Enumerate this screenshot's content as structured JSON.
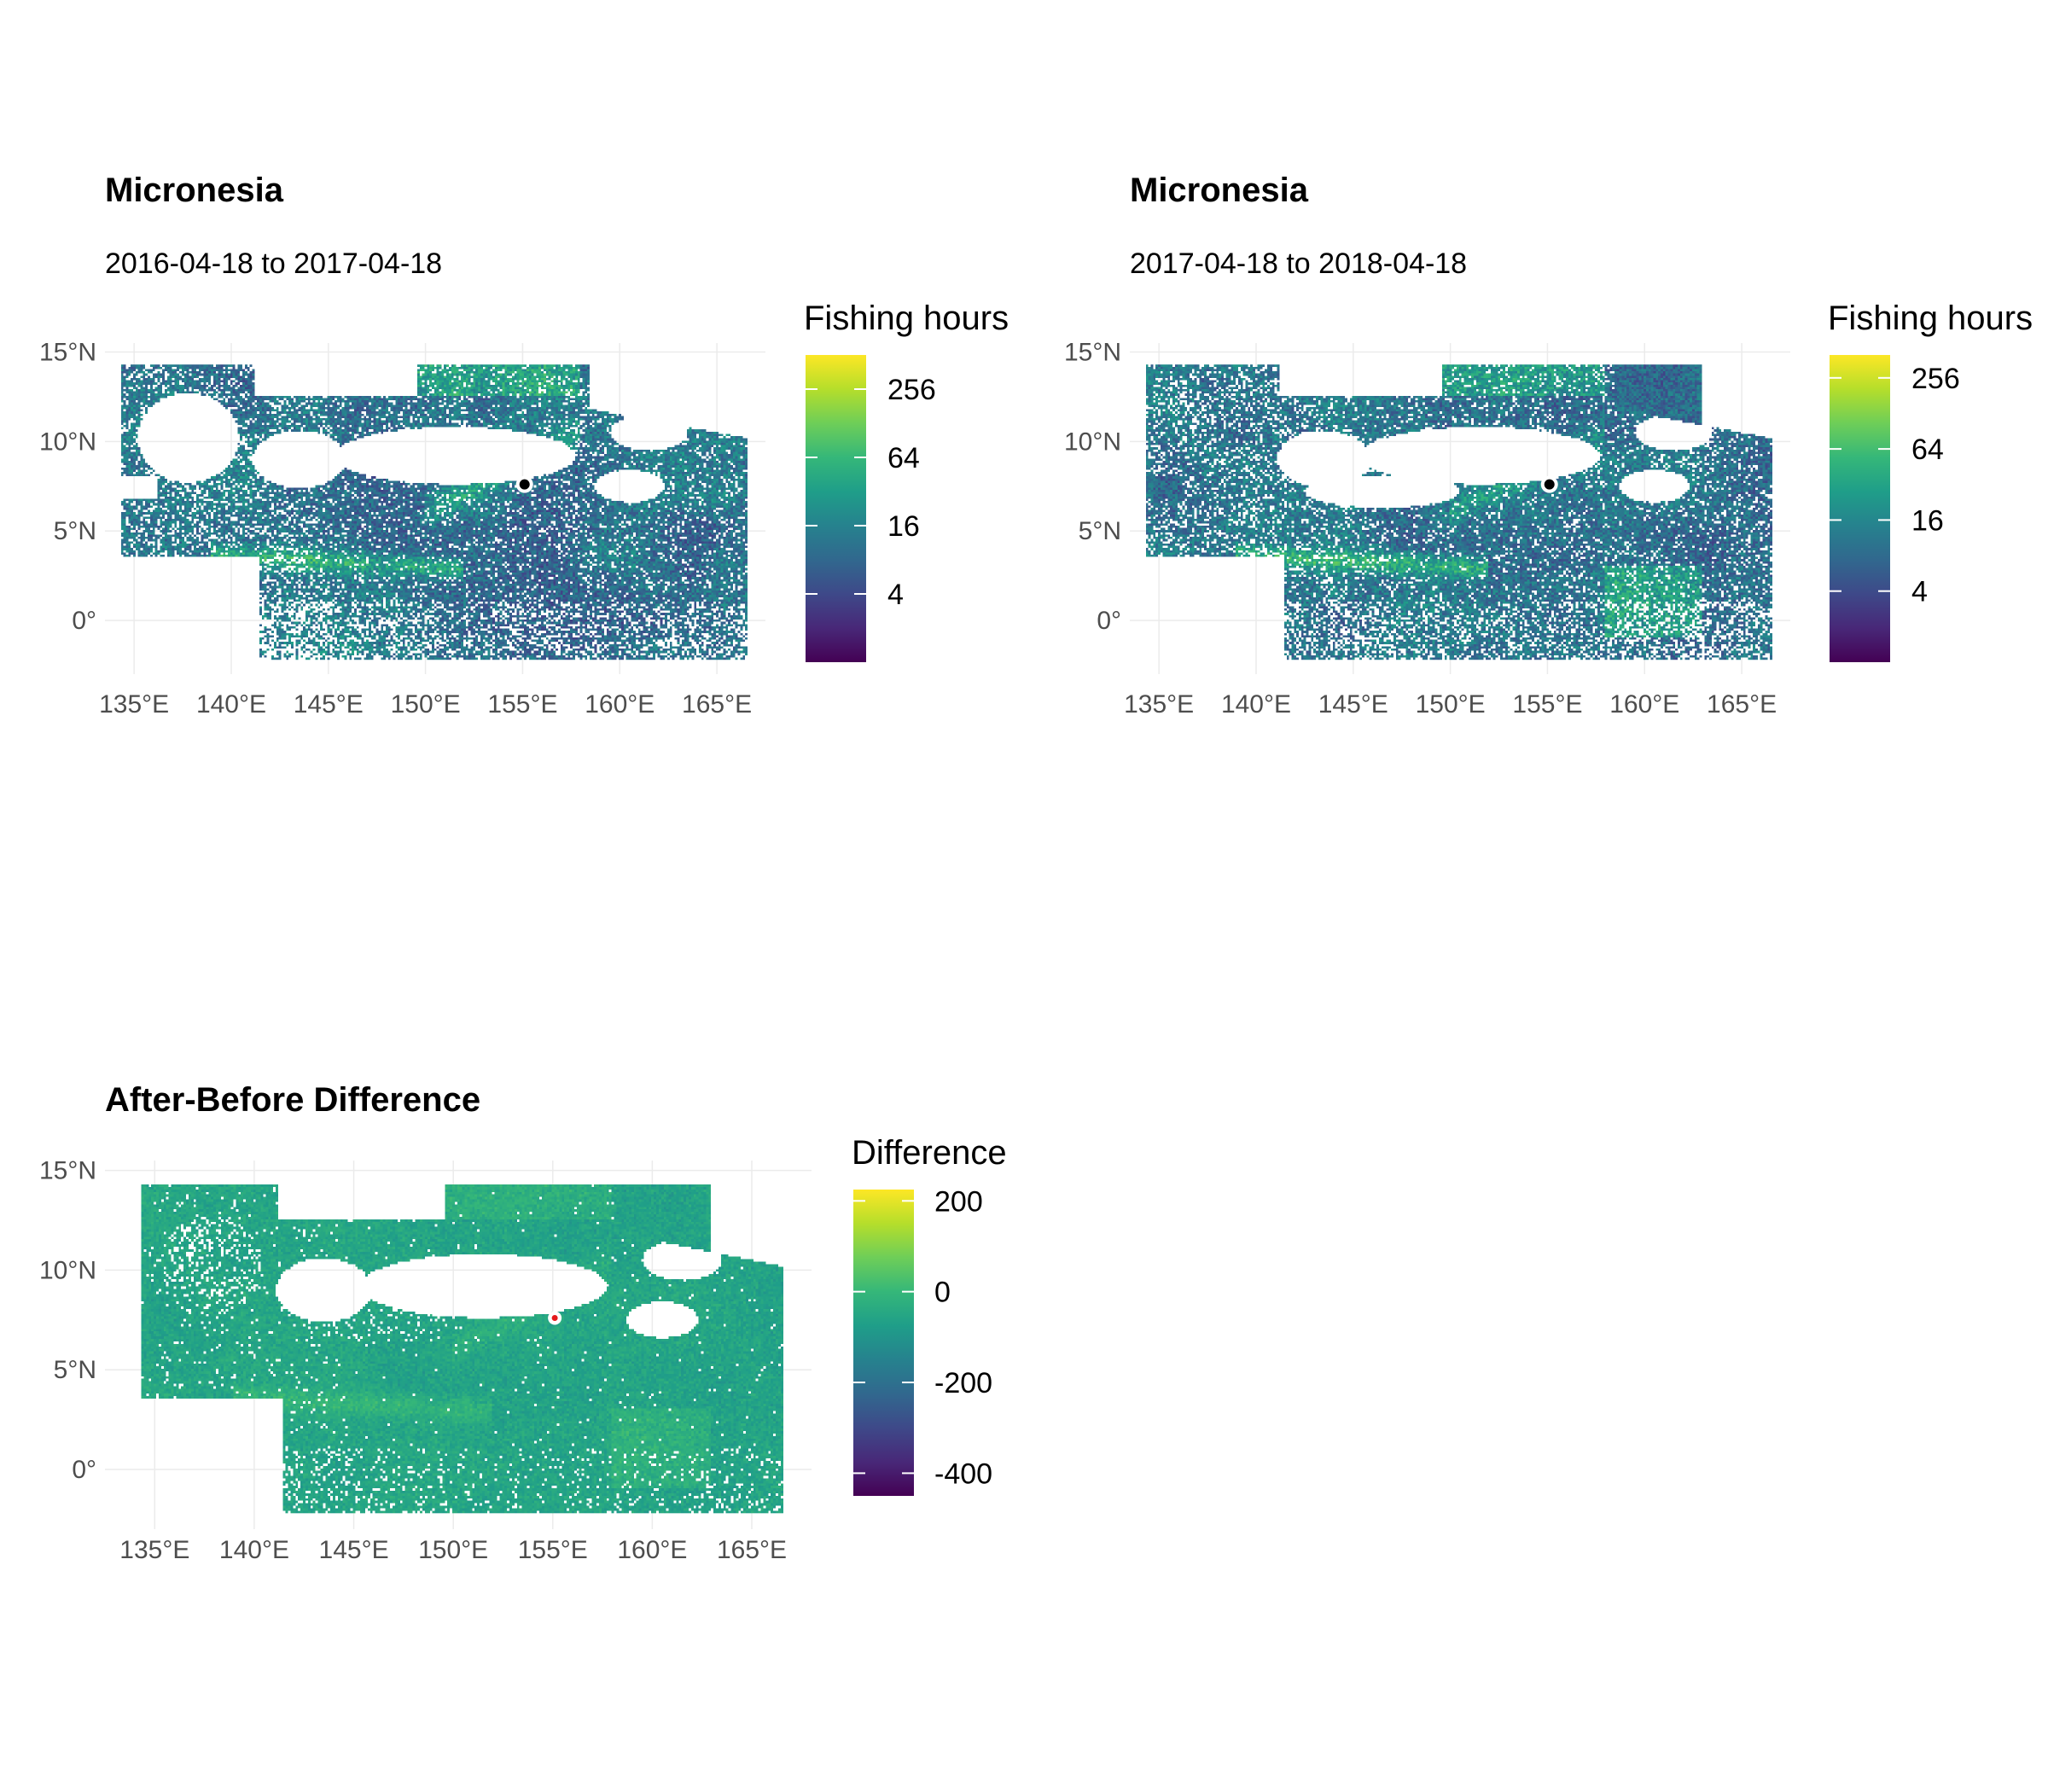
{
  "chart_data": [
    {
      "type": "heatmap",
      "id": "before",
      "title": "Micronesia",
      "subtitle": "2016-04-18 to 2017-04-18",
      "xlabel": "",
      "ylabel": "",
      "xlim": [
        133.5,
        167.5
      ],
      "ylim": [
        -3,
        15.5
      ],
      "x_ticks": [
        135,
        140,
        145,
        150,
        155,
        160,
        165
      ],
      "x_tick_labels": [
        "135°E",
        "140°E",
        "145°E",
        "150°E",
        "155°E",
        "160°E",
        "165°E"
      ],
      "y_ticks": [
        0,
        5,
        10,
        15
      ],
      "y_tick_labels": [
        "0°",
        "5°N",
        "10°N",
        "15°N"
      ],
      "grid": true,
      "legend": {
        "title": "Fishing hours",
        "position": "right",
        "scale": "log2",
        "range": [
          1,
          512
        ],
        "breaks": [
          4,
          16,
          64,
          256
        ],
        "labels": [
          "4",
          "16",
          "64",
          "256"
        ],
        "palette": "viridis"
      },
      "variant": 0
    },
    {
      "type": "heatmap",
      "id": "after",
      "title": "Micronesia",
      "subtitle": "2017-04-18 to 2018-04-18",
      "xlabel": "",
      "ylabel": "",
      "xlim": [
        133.5,
        167.5
      ],
      "ylim": [
        -3,
        15.5
      ],
      "x_ticks": [
        135,
        140,
        145,
        150,
        155,
        160,
        165
      ],
      "x_tick_labels": [
        "135°E",
        "140°E",
        "145°E",
        "150°E",
        "155°E",
        "160°E",
        "165°E"
      ],
      "y_ticks": [
        0,
        5,
        10,
        15
      ],
      "y_tick_labels": [
        "0°",
        "5°N",
        "10°N",
        "15°N"
      ],
      "grid": true,
      "legend": {
        "title": "Fishing hours",
        "position": "right",
        "scale": "log2",
        "range": [
          1,
          400
        ],
        "breaks": [
          4,
          16,
          64,
          256
        ],
        "labels": [
          "4",
          "16",
          "64",
          "256"
        ],
        "palette": "viridis"
      },
      "variant": 1
    },
    {
      "type": "heatmap",
      "id": "difference",
      "title": "After-Before Difference",
      "subtitle": "",
      "xlabel": "",
      "ylabel": "",
      "xlim": [
        132.5,
        168
      ],
      "ylim": [
        -3,
        15.5
      ],
      "x_ticks": [
        135,
        140,
        145,
        150,
        155,
        160,
        165
      ],
      "x_tick_labels": [
        "135°E",
        "140°E",
        "145°E",
        "150°E",
        "155°E",
        "160°E",
        "165°E"
      ],
      "y_ticks": [
        0,
        5,
        10,
        15
      ],
      "y_tick_labels": [
        "0°",
        "5°N",
        "10°N",
        "15°N"
      ],
      "grid": true,
      "legend": {
        "title": "Difference",
        "position": "right",
        "scale": "linear",
        "range": [
          -450,
          225
        ],
        "breaks": [
          -400,
          -200,
          0,
          200
        ],
        "labels": [
          "-400",
          "-200",
          "0",
          "200"
        ],
        "palette": "viridis"
      },
      "variant": 2
    }
  ],
  "colors": {
    "viridis": [
      "#440154",
      "#482878",
      "#3e4989",
      "#31688e",
      "#26828e",
      "#1f9e89",
      "#35b779",
      "#6ece58",
      "#b5de2b",
      "#fde725"
    ],
    "grid": "#ebebeb",
    "land_marker": "#000000",
    "diff_marker": "#e41a1c"
  }
}
